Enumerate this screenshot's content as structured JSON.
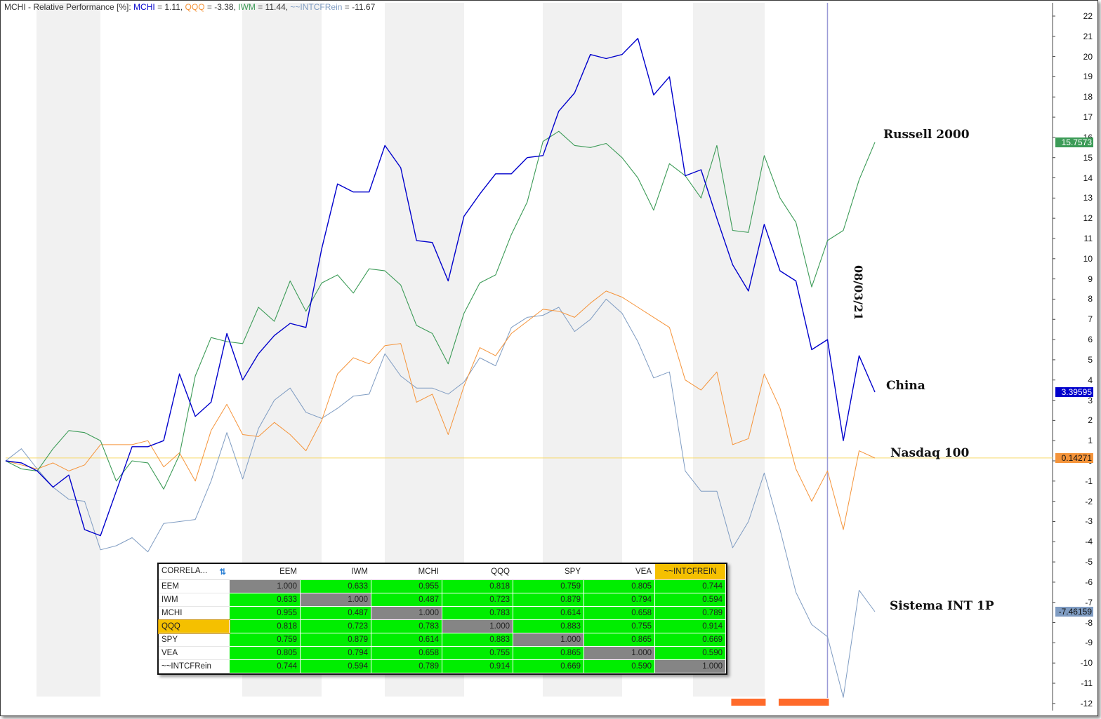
{
  "header": {
    "prefix": "MCHI - Relative Performance [%]: ",
    "items": [
      {
        "name": "MCHI",
        "value": "= 1.11, ",
        "color": "#0000cc"
      },
      {
        "name": "QQQ",
        "value": "= -3.38, ",
        "color": "#f5943a"
      },
      {
        "name": "IWM",
        "value": "= 11.44, ",
        "color": "#3c9b57"
      },
      {
        "name": "~~INTCFRein",
        "value": "= -11.67",
        "color": "#7f9cc2"
      }
    ]
  },
  "labels": {
    "russell": "Russell 2000",
    "china": "China",
    "nasdaq": "Nasdaq 100",
    "sistema": "Sistema INT 1P",
    "date": "08/03/21"
  },
  "badges": {
    "russell": {
      "text": "15.7573",
      "bg": "#3c9b57",
      "fg": "#ffffff",
      "y": 15.7573
    },
    "china": {
      "text": "3.39595",
      "bg": "#0000cc",
      "fg": "#ffffff",
      "y": 3.39595
    },
    "nasdaq": {
      "text": "0.14271",
      "bg": "#f5943a",
      "fg": "#111111",
      "y": 0.14271
    },
    "sistema": {
      "text": "-7.46159",
      "bg": "#7f9cc2",
      "fg": "#111111",
      "y": -7.46159
    }
  },
  "correlation": {
    "corner": "CORRELA...",
    "columns": [
      "EEM",
      "IWM",
      "MCHI",
      "QQQ",
      "SPY",
      "VEA",
      "~~INTCFREIN"
    ],
    "rows": [
      {
        "label": "EEM",
        "values": [
          "1.000",
          "0.633",
          "0.955",
          "0.818",
          "0.759",
          "0.805",
          "0.744"
        ]
      },
      {
        "label": "IWM",
        "values": [
          "0.633",
          "1.000",
          "0.487",
          "0.723",
          "0.879",
          "0.794",
          "0.594"
        ]
      },
      {
        "label": "MCHI",
        "values": [
          "0.955",
          "0.487",
          "1.000",
          "0.783",
          "0.614",
          "0.658",
          "0.789"
        ]
      },
      {
        "label": "QQQ",
        "values": [
          "0.818",
          "0.723",
          "0.783",
          "1.000",
          "0.883",
          "0.755",
          "0.914"
        ]
      },
      {
        "label": "SPY",
        "values": [
          "0.759",
          "0.879",
          "0.614",
          "0.883",
          "1.000",
          "0.865",
          "0.669"
        ]
      },
      {
        "label": "VEA",
        "values": [
          "0.805",
          "0.794",
          "0.658",
          "0.755",
          "0.865",
          "1.000",
          "0.590"
        ]
      },
      {
        "label": "~~INTCFRein",
        "values": [
          "0.744",
          "0.594",
          "0.789",
          "0.914",
          "0.669",
          "0.590",
          "1.000"
        ]
      }
    ],
    "highlight_row": "QQQ",
    "highlight_col": "~~INTCFREIN",
    "colors": {
      "cell": "#00ee00",
      "diagonal": "#858585",
      "highlight": "#f5c000"
    }
  },
  "chart_data": {
    "type": "line",
    "ylim": [
      -12.5,
      22.5
    ],
    "yticks": [
      -12,
      -11,
      -10,
      -9,
      -8,
      -7,
      -6,
      -5,
      -4,
      -3,
      -2,
      -1,
      0,
      1,
      2,
      3,
      4,
      5,
      6,
      7,
      8,
      9,
      10,
      11,
      12,
      13,
      14,
      15,
      16,
      17,
      18,
      19,
      20,
      21,
      22
    ],
    "zero_line": 0.14271,
    "marker_index": 52,
    "series": [
      {
        "name": "MCHI",
        "color": "#0000cc",
        "width": 1.4,
        "values": [
          0,
          -0.1,
          -0.5,
          -1.3,
          -0.7,
          -3.4,
          -3.7,
          -1.5,
          0.7,
          0.7,
          1.0,
          4.3,
          2.2,
          2.9,
          6.3,
          4.0,
          5.3,
          6.2,
          6.8,
          6.6,
          10.5,
          13.7,
          13.3,
          13.3,
          15.6,
          14.5,
          10.9,
          10.8,
          8.9,
          12.1,
          13.2,
          14.2,
          14.2,
          15.0,
          15.1,
          17.3,
          18.2,
          20.1,
          19.9,
          20.1,
          20.9,
          18.1,
          19.0,
          14.1,
          14.4,
          12.0,
          9.7,
          8.4,
          11.7,
          9.4,
          8.9,
          5.5,
          6.0,
          1.0,
          5.2,
          3.4
        ]
      },
      {
        "name": "IWM",
        "color": "#3c9b57",
        "width": 1.1,
        "values": [
          0,
          -0.4,
          -0.5,
          0.6,
          1.5,
          1.4,
          1.0,
          -1.0,
          0.0,
          -0.1,
          -1.4,
          0.3,
          4.2,
          6.1,
          5.9,
          5.8,
          7.6,
          6.9,
          8.9,
          7.4,
          8.8,
          9.2,
          8.3,
          9.5,
          9.4,
          8.7,
          6.7,
          6.3,
          4.8,
          7.3,
          8.8,
          9.2,
          11.2,
          12.8,
          15.8,
          16.3,
          15.6,
          15.5,
          15.7,
          15.0,
          14.0,
          12.4,
          14.7,
          14.1,
          13.0,
          15.6,
          11.4,
          11.3,
          15.1,
          13.0,
          11.8,
          8.6,
          10.9,
          11.4,
          13.9,
          15.76
        ]
      },
      {
        "name": "QQQ",
        "color": "#f5943a",
        "width": 1.0,
        "values": [
          0,
          -0.2,
          -0.4,
          -0.1,
          -0.5,
          -0.2,
          0.8,
          0.8,
          0.8,
          1.0,
          -0.3,
          0.4,
          -1.0,
          1.5,
          2.8,
          1.3,
          1.2,
          1.9,
          1.3,
          0.5,
          2.0,
          4.3,
          5.1,
          4.8,
          5.7,
          5.8,
          2.9,
          3.3,
          1.3,
          3.7,
          5.6,
          5.2,
          6.3,
          6.9,
          7.5,
          7.4,
          7.1,
          7.8,
          8.4,
          8.1,
          7.6,
          7.1,
          6.6,
          4.0,
          3.5,
          4.4,
          0.8,
          1.1,
          4.3,
          2.6,
          -0.4,
          -2.0,
          -0.5,
          -3.4,
          0.5,
          0.14
        ]
      },
      {
        "name": "~~INTCFRein",
        "color": "#7f9cc2",
        "width": 1.0,
        "values": [
          0,
          0.6,
          -0.4,
          -1.3,
          -1.9,
          -2.0,
          -4.4,
          -4.2,
          -3.8,
          -4.5,
          -3.1,
          -3.0,
          -2.9,
          -1.0,
          1.4,
          -0.9,
          1.6,
          3.0,
          3.6,
          2.4,
          2.1,
          2.6,
          3.2,
          3.3,
          5.3,
          4.2,
          3.6,
          3.6,
          3.3,
          3.9,
          5.1,
          4.7,
          6.6,
          7.1,
          7.2,
          7.6,
          6.4,
          7.0,
          8.0,
          7.3,
          5.9,
          4.1,
          4.4,
          -0.5,
          -1.5,
          -1.5,
          -4.3,
          -3.0,
          -0.6,
          -3.4,
          -6.5,
          -8.1,
          -8.7,
          -11.7,
          -6.4,
          -7.46
        ]
      }
    ],
    "orange_bars": [
      [
        46,
        48
      ],
      [
        49,
        52
      ]
    ]
  }
}
